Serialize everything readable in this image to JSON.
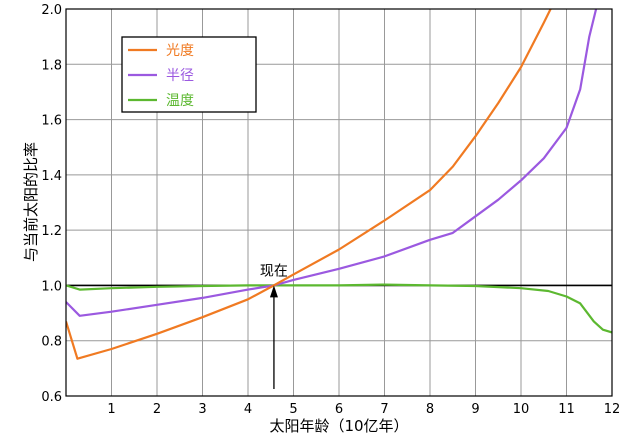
{
  "chart_data": {
    "type": "line",
    "title": "",
    "xlabel": "太阳年龄（10亿年）",
    "ylabel": "与当前太阳的比率",
    "xlim": [
      0,
      12
    ],
    "ylim": [
      0.6,
      2.0
    ],
    "grid": true,
    "legend_position": "top-left",
    "x_ticks": [
      "1",
      "2",
      "3",
      "4",
      "5",
      "6",
      "7",
      "8",
      "9",
      "10",
      "11",
      "12"
    ],
    "y_ticks": [
      "0.6",
      "0.8",
      "1.0",
      "1.2",
      "1.4",
      "1.6",
      "1.8",
      "2.0"
    ],
    "reference_line": {
      "y": 1.0,
      "color": "#000000"
    },
    "series": [
      {
        "name": "光度",
        "color": "#f07a22",
        "points": [
          [
            0,
            0.87
          ],
          [
            0.25,
            0.735
          ],
          [
            1,
            0.77
          ],
          [
            2,
            0.825
          ],
          [
            3,
            0.885
          ],
          [
            4,
            0.95
          ],
          [
            4.57,
            1.0
          ],
          [
            5,
            1.04
          ],
          [
            6,
            1.13
          ],
          [
            7,
            1.235
          ],
          [
            8,
            1.345
          ],
          [
            8.5,
            1.43
          ],
          [
            9,
            1.54
          ],
          [
            9.5,
            1.66
          ],
          [
            10,
            1.79
          ],
          [
            10.5,
            1.95
          ],
          [
            10.65,
            2.0
          ]
        ]
      },
      {
        "name": "半径",
        "color": "#9b59e0",
        "points": [
          [
            0,
            0.94
          ],
          [
            0.3,
            0.89
          ],
          [
            1,
            0.905
          ],
          [
            2,
            0.93
          ],
          [
            3,
            0.955
          ],
          [
            4,
            0.985
          ],
          [
            4.57,
            1.0
          ],
          [
            5,
            1.02
          ],
          [
            6,
            1.06
          ],
          [
            7,
            1.105
          ],
          [
            8,
            1.165
          ],
          [
            8.5,
            1.19
          ],
          [
            9,
            1.25
          ],
          [
            9.5,
            1.31
          ],
          [
            10,
            1.38
          ],
          [
            10.5,
            1.46
          ],
          [
            11,
            1.57
          ],
          [
            11.3,
            1.71
          ],
          [
            11.5,
            1.9
          ],
          [
            11.65,
            2.0
          ]
        ]
      },
      {
        "name": "温度",
        "color": "#5cb830",
        "points": [
          [
            0,
            1.0
          ],
          [
            0.3,
            0.985
          ],
          [
            1,
            0.99
          ],
          [
            2,
            0.995
          ],
          [
            3,
            0.998
          ],
          [
            4,
            1.0
          ],
          [
            5,
            1.0
          ],
          [
            6,
            1.0
          ],
          [
            7,
            1.003
          ],
          [
            8,
            1.0
          ],
          [
            9,
            0.998
          ],
          [
            10,
            0.99
          ],
          [
            10.6,
            0.98
          ],
          [
            11,
            0.96
          ],
          [
            11.3,
            0.935
          ],
          [
            11.6,
            0.87
          ],
          [
            11.8,
            0.84
          ],
          [
            12,
            0.83
          ]
        ]
      }
    ],
    "annotations": [
      {
        "text": "现在",
        "x": 4.57,
        "y": 1.0
      }
    ]
  }
}
